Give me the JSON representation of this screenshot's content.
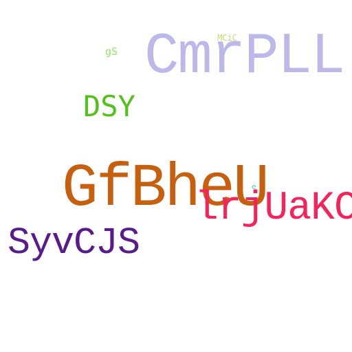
{
  "words": [
    {
      "id": "cmrpll",
      "text": "CmrPLL",
      "color": "#bcb8ea"
    },
    {
      "id": "mcic",
      "text": "MCiC",
      "color": "#c4dc6c"
    },
    {
      "id": "gs",
      "text": "gS",
      "color": "#90e86a"
    },
    {
      "id": "dsy",
      "text": "DSY",
      "color": "#52c21a"
    },
    {
      "id": "gfbheu",
      "text": "GfBheU",
      "color": "#c85f0e"
    },
    {
      "id": "e",
      "text": "e",
      "color": "#40d8b8"
    },
    {
      "id": "lrjuakcs",
      "text": "lrjUaKCs",
      "color": "#f4245a"
    },
    {
      "id": "syvcjs",
      "text": "SyvCJS",
      "color": "#581a8c"
    }
  ]
}
